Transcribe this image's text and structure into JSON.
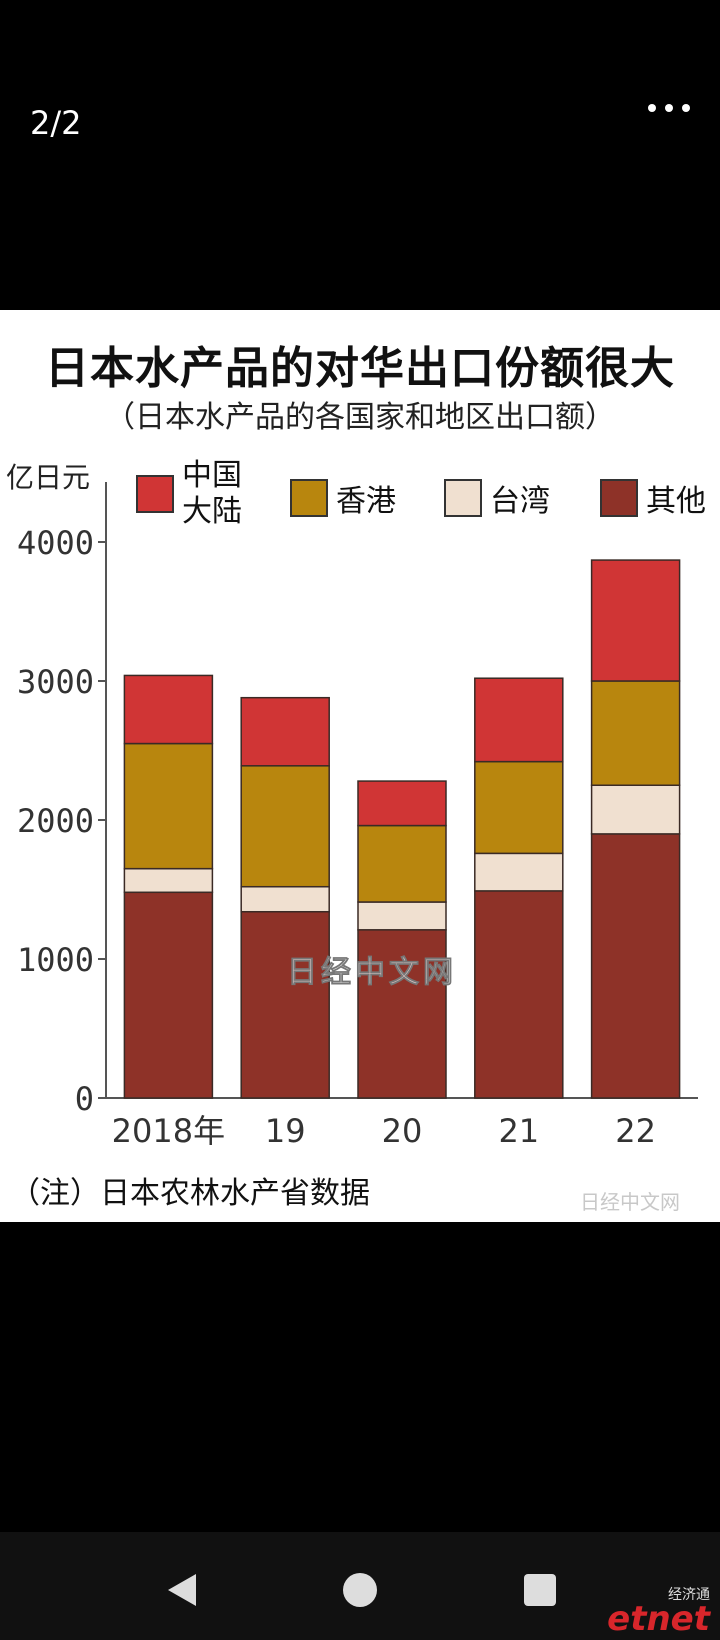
{
  "viewer": {
    "counter": "2/2",
    "more_icon": "more-horizontal-icon"
  },
  "chart_data": {
    "type": "bar",
    "stacked": true,
    "title": "日本水产品的对华出口份额很大",
    "subtitle": "（日本水产品的各国家和地区出口额）",
    "ylabel": "亿日元",
    "ylim": [
      0,
      4000
    ],
    "yticks": [
      0,
      1000,
      2000,
      3000,
      4000
    ],
    "categories": [
      "2018年",
      "19",
      "20",
      "21",
      "22"
    ],
    "series": [
      {
        "name": "其他",
        "color": "#8e3228",
        "values": [
          1480,
          1340,
          1210,
          1490,
          1900
        ]
      },
      {
        "name": "台湾",
        "color": "#f0e0d0",
        "values": [
          170,
          180,
          200,
          270,
          350
        ]
      },
      {
        "name": "香港",
        "color": "#b8860e",
        "values": [
          900,
          870,
          550,
          660,
          750
        ]
      },
      {
        "name": "中国大陆",
        "color": "#d03535",
        "values": [
          490,
          490,
          320,
          600,
          870
        ]
      }
    ],
    "legend": [
      {
        "label": "中国",
        "label2": "大陆",
        "color": "#d03535"
      },
      {
        "label": "香港",
        "color": "#b8860e"
      },
      {
        "label": "台湾",
        "color": "#f0e0d0"
      },
      {
        "label": "其他",
        "color": "#8e3228"
      }
    ],
    "legend_placement": "top",
    "grid": false,
    "note": "（注）日本农林水产省数据",
    "watermark": "日经中文网",
    "watermark_corner": "日经中文网"
  },
  "navbar": {
    "back_icon": "back-triangle-icon",
    "home_icon": "home-circle-icon",
    "recents_icon": "recents-square-icon",
    "brand_cn": "经济通",
    "brand_en": "etnet"
  }
}
